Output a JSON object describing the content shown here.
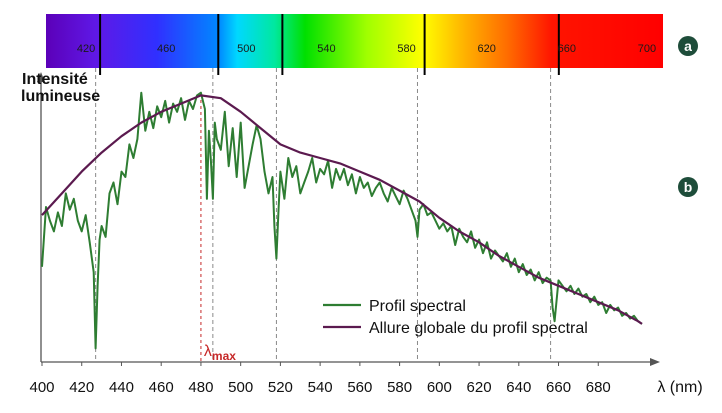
{
  "chart_data": [
    {
      "type": "spectrum-bar",
      "panel_label": "a",
      "x": [
        420,
        460,
        500,
        540,
        580,
        620,
        660,
        700
      ],
      "tick_labels": [
        "420",
        "460",
        "500",
        "540",
        "580",
        "620",
        "660",
        "700"
      ],
      "xlim": [
        400,
        708
      ],
      "absorption_lines": [
        427,
        486,
        518,
        589,
        656
      ]
    },
    {
      "type": "line",
      "panel_label": "b",
      "xlabel": "λ (nm)",
      "ylabel_line1": "Intensité",
      "ylabel_line2": "lumineuse",
      "xlim": [
        400,
        708
      ],
      "ylim": [
        0,
        100
      ],
      "x_ticks": [
        400,
        420,
        440,
        460,
        480,
        500,
        520,
        540,
        560,
        580,
        600,
        620,
        640,
        660,
        680
      ],
      "x_tick_labels": [
        "400",
        "420",
        "440",
        "460",
        "480",
        "500",
        "520",
        "540",
        "560",
        "580",
        "600",
        "620",
        "640",
        "660",
        "680"
      ],
      "guide_lines": [
        427,
        486,
        518,
        589,
        656
      ],
      "lambda_max": {
        "x": 480,
        "label_base": "λ",
        "label_sub": "max"
      },
      "series": [
        {
          "name": "Profil spectral",
          "x": [
            400,
            402,
            404,
            406,
            408,
            410,
            412,
            414,
            416,
            418,
            420,
            422,
            424,
            426,
            427,
            428,
            429,
            430,
            432,
            434,
            436,
            438,
            440,
            442,
            444,
            446,
            448,
            450,
            452,
            454,
            456,
            458,
            460,
            462,
            464,
            466,
            468,
            470,
            472,
            474,
            476,
            478,
            480,
            482,
            483,
            484,
            485,
            486,
            487,
            488,
            490,
            492,
            494,
            496,
            498,
            500,
            502,
            504,
            506,
            508,
            510,
            512,
            514,
            516,
            517,
            518,
            519,
            520,
            522,
            524,
            526,
            528,
            530,
            532,
            534,
            536,
            538,
            540,
            542,
            544,
            546,
            548,
            550,
            552,
            554,
            556,
            558,
            560,
            562,
            564,
            566,
            568,
            570,
            572,
            574,
            576,
            578,
            580,
            582,
            584,
            586,
            588,
            589,
            590,
            592,
            594,
            596,
            598,
            600,
            602,
            604,
            606,
            608,
            610,
            612,
            614,
            616,
            618,
            620,
            622,
            624,
            626,
            628,
            630,
            632,
            634,
            636,
            638,
            640,
            642,
            644,
            646,
            648,
            650,
            652,
            654,
            656,
            657,
            658,
            660,
            662,
            664,
            666,
            668,
            670,
            672,
            674,
            676,
            678,
            680,
            682,
            684,
            686,
            688,
            690,
            692,
            694,
            696,
            698,
            700,
            702
          ],
          "values": [
            35,
            57,
            52,
            48,
            55,
            50,
            62,
            56,
            60,
            52,
            48,
            54,
            44,
            33,
            5,
            28,
            45,
            50,
            46,
            62,
            66,
            58,
            70,
            68,
            80,
            75,
            82,
            99,
            85,
            92,
            86,
            94,
            90,
            96,
            88,
            95,
            92,
            97,
            89,
            96,
            93,
            98,
            99,
            93,
            60,
            85,
            74,
            60,
            88,
            82,
            78,
            92,
            72,
            86,
            68,
            88,
            64,
            72,
            80,
            87,
            82,
            70,
            62,
            68,
            50,
            38,
            55,
            70,
            60,
            75,
            68,
            72,
            62,
            66,
            70,
            75,
            66,
            71,
            69,
            74,
            64,
            71,
            67,
            71,
            65,
            69,
            62,
            68,
            64,
            66,
            61,
            64,
            66,
            62,
            59,
            64,
            61,
            58,
            63,
            60,
            56,
            52,
            46,
            56,
            58,
            54,
            55,
            52,
            49,
            51,
            48,
            50,
            43,
            49,
            46,
            44,
            48,
            42,
            45,
            40,
            44,
            38,
            41,
            39,
            37,
            40,
            35,
            38,
            33,
            36,
            32,
            34,
            30,
            33,
            29,
            31,
            30,
            20,
            15,
            30,
            28,
            26,
            28,
            25,
            27,
            24,
            25,
            22,
            24,
            21,
            22,
            18,
            21,
            19,
            20,
            17,
            18,
            16,
            17,
            15,
            14
          ]
        },
        {
          "name": "Allure globale du profil spectral",
          "x": [
            400,
            410,
            420,
            430,
            440,
            450,
            460,
            470,
            480,
            490,
            500,
            510,
            520,
            530,
            540,
            550,
            560,
            570,
            580,
            590,
            600,
            610,
            620,
            630,
            640,
            650,
            660,
            670,
            680,
            690,
            700,
            702
          ],
          "values": [
            54,
            62,
            70,
            77,
            83,
            88,
            92,
            95,
            98,
            97,
            92,
            86,
            80,
            77,
            75,
            73,
            70,
            67,
            63,
            59,
            53,
            48,
            44,
            39,
            35,
            31,
            28,
            25,
            22,
            19,
            15,
            14
          ]
        }
      ],
      "colors": {
        "profil": "#2e7d32",
        "allure": "#5b1a4f",
        "lambda_max": "#c62828",
        "guide": "#8a8a8a",
        "badge": "#1e4d3a"
      }
    }
  ]
}
